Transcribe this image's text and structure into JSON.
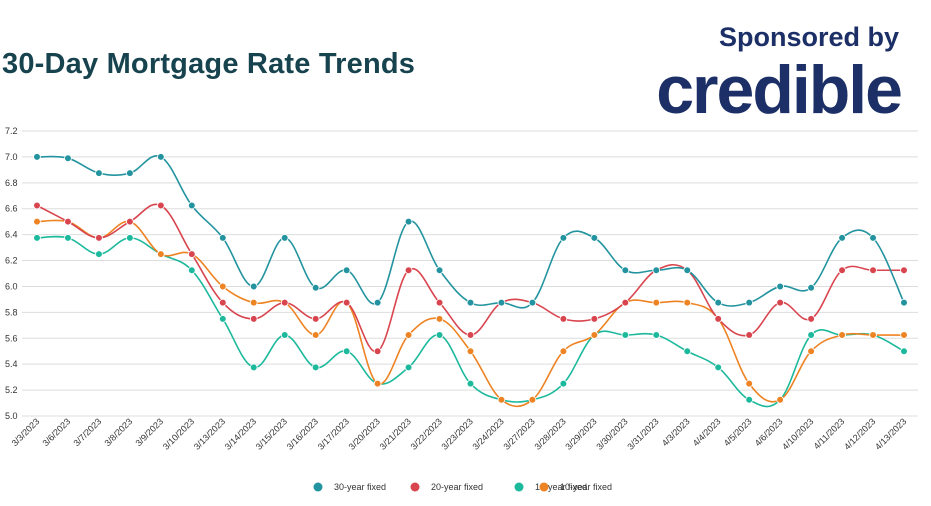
{
  "header": {
    "title": "30-Day Mortgage Rate Trends",
    "sponsor_label": "Sponsored by",
    "logo_text": "credible"
  },
  "colors": {
    "title": "#17434e",
    "brand": "#1c2f66",
    "grid": "#dddddd"
  },
  "chart_data": {
    "type": "line",
    "title": "30-Day Mortgage Rate Trends",
    "xlabel": "",
    "ylabel": "",
    "ylim": [
      5.0,
      7.2
    ],
    "yticks": [
      "5.0",
      "5.2",
      "5.4",
      "5.6",
      "5.8",
      "6.0",
      "6.2",
      "6.4",
      "6.6",
      "6.8",
      "7.0",
      "7.2"
    ],
    "grid": true,
    "legend_position": "bottom",
    "categories": [
      "3/3/2023",
      "3/6/2023",
      "3/7/2023",
      "3/8/2023",
      "3/9/2023",
      "3/10/2023",
      "3/13/2023",
      "3/14/2023",
      "3/15/2023",
      "3/16/2023",
      "3/17/2023",
      "3/20/2023",
      "3/21/2023",
      "3/22/2023",
      "3/23/2023",
      "3/24/2023",
      "3/27/2023",
      "3/28/2023",
      "3/29/2023",
      "3/30/2023",
      "3/31/2023",
      "4/3/2023",
      "4/4/2023",
      "4/5/2023",
      "4/6/2023",
      "4/10/2023",
      "4/11/2023",
      "4/12/2023",
      "4/13/2023"
    ],
    "series": [
      {
        "name": "30-year fixed",
        "color": "#23949f",
        "values": [
          7.0,
          6.99,
          6.875,
          6.875,
          7.0,
          6.625,
          6.375,
          6.0,
          6.375,
          5.99,
          6.125,
          5.875,
          6.5,
          6.125,
          5.875,
          5.875,
          5.875,
          6.375,
          6.375,
          6.125,
          6.125,
          6.125,
          5.875,
          5.875,
          6.0,
          5.99,
          6.375,
          6.375,
          5.875
        ]
      },
      {
        "name": "20-year fixed",
        "color": "#d9454f",
        "values": [
          6.625,
          6.5,
          6.375,
          6.5,
          6.625,
          6.25,
          5.875,
          5.75,
          5.875,
          5.75,
          5.875,
          5.5,
          6.125,
          5.875,
          5.625,
          5.875,
          5.875,
          5.75,
          5.75,
          5.875,
          6.125,
          6.125,
          5.75,
          5.625,
          5.875,
          5.75,
          6.125,
          6.125,
          6.125
        ]
      },
      {
        "name": "15-year fixed",
        "color": "#1cb99c",
        "values": [
          6.375,
          6.375,
          6.25,
          6.375,
          6.25,
          6.125,
          5.75,
          5.375,
          5.625,
          5.375,
          5.5,
          5.25,
          5.375,
          5.625,
          5.25,
          5.125,
          5.125,
          5.25,
          5.625,
          5.625,
          5.625,
          5.5,
          5.375,
          5.125,
          5.125,
          5.625,
          5.625,
          5.625,
          5.5
        ]
      },
      {
        "name": "10-year fixed",
        "color": "#ee8323",
        "values": [
          6.5,
          6.5,
          6.375,
          6.5,
          6.25,
          6.25,
          6.0,
          5.875,
          5.875,
          5.625,
          5.875,
          5.25,
          5.625,
          5.75,
          5.5,
          5.125,
          5.125,
          5.5,
          5.625,
          5.875,
          5.875,
          5.875,
          5.75,
          5.25,
          5.125,
          5.5,
          5.625,
          5.625,
          5.625
        ]
      }
    ]
  }
}
